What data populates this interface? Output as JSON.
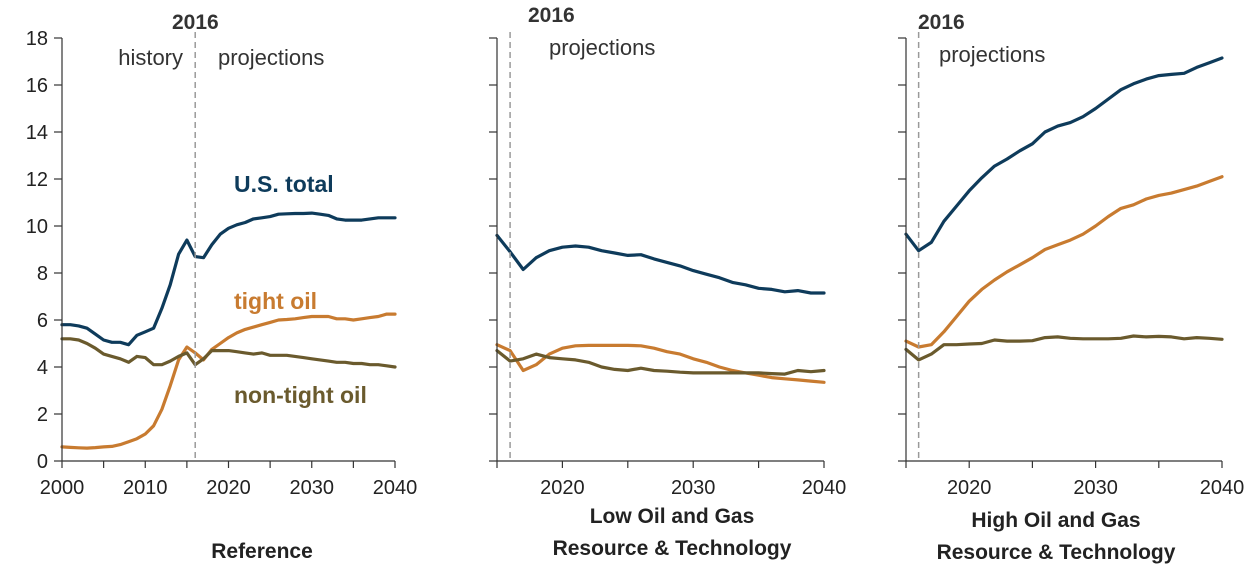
{
  "chart_data": [
    {
      "type": "line",
      "title": "Reference",
      "xlim": [
        2000,
        2040
      ],
      "ylim": [
        0,
        18
      ],
      "x_ticks": [
        2000,
        2010,
        2020,
        2030,
        2040
      ],
      "y_ticks": [
        0,
        2,
        4,
        6,
        8,
        10,
        12,
        14,
        16,
        18
      ],
      "grid": false,
      "divider": {
        "year": "2016",
        "left": "history",
        "right": "projections"
      },
      "series": [
        {
          "name": "U.S. total",
          "color": "#0e3b5b",
          "x": [
            2000,
            2001,
            2002,
            2003,
            2004,
            2005,
            2006,
            2007,
            2008,
            2009,
            2010,
            2011,
            2012,
            2013,
            2014,
            2015,
            2016,
            2017,
            2018,
            2019,
            2020,
            2021,
            2022,
            2023,
            2024,
            2025,
            2026,
            2027,
            2028,
            2029,
            2030,
            2031,
            2032,
            2033,
            2034,
            2035,
            2036,
            2037,
            2038,
            2039,
            2040
          ],
          "y": [
            5.8,
            5.8,
            5.75,
            5.65,
            5.4,
            5.15,
            5.05,
            5.05,
            4.95,
            5.35,
            5.5,
            5.65,
            6.5,
            7.5,
            8.8,
            9.4,
            8.7,
            8.65,
            9.2,
            9.65,
            9.9,
            10.05,
            10.15,
            10.3,
            10.35,
            10.4,
            10.5,
            10.52,
            10.53,
            10.53,
            10.55,
            10.5,
            10.45,
            10.3,
            10.25,
            10.25,
            10.25,
            10.3,
            10.35,
            10.35,
            10.35
          ]
        },
        {
          "name": "tight oil",
          "color": "#c87b30",
          "x": [
            2000,
            2001,
            2002,
            2003,
            2004,
            2005,
            2006,
            2007,
            2008,
            2009,
            2010,
            2011,
            2012,
            2013,
            2014,
            2015,
            2016,
            2017,
            2018,
            2019,
            2020,
            2021,
            2022,
            2023,
            2024,
            2025,
            2026,
            2027,
            2028,
            2029,
            2030,
            2031,
            2032,
            2033,
            2034,
            2035,
            2036,
            2037,
            2038,
            2039,
            2040
          ],
          "y": [
            0.6,
            0.58,
            0.56,
            0.55,
            0.57,
            0.6,
            0.62,
            0.7,
            0.82,
            0.95,
            1.15,
            1.5,
            2.2,
            3.2,
            4.3,
            4.85,
            4.6,
            4.3,
            4.75,
            5.0,
            5.25,
            5.45,
            5.6,
            5.7,
            5.8,
            5.9,
            6.0,
            6.02,
            6.05,
            6.1,
            6.15,
            6.15,
            6.15,
            6.05,
            6.05,
            6.0,
            6.05,
            6.1,
            6.15,
            6.25,
            6.25
          ]
        },
        {
          "name": "non-tight oil",
          "color": "#6a5a2d",
          "x": [
            2000,
            2001,
            2002,
            2003,
            2004,
            2005,
            2006,
            2007,
            2008,
            2009,
            2010,
            2011,
            2012,
            2013,
            2014,
            2015,
            2016,
            2017,
            2018,
            2019,
            2020,
            2021,
            2022,
            2023,
            2024,
            2025,
            2026,
            2027,
            2028,
            2029,
            2030,
            2031,
            2032,
            2033,
            2034,
            2035,
            2036,
            2037,
            2038,
            2039,
            2040
          ],
          "y": [
            5.2,
            5.2,
            5.15,
            5.0,
            4.8,
            4.55,
            4.45,
            4.35,
            4.2,
            4.45,
            4.4,
            4.1,
            4.1,
            4.25,
            4.45,
            4.6,
            4.1,
            4.35,
            4.7,
            4.7,
            4.7,
            4.65,
            4.6,
            4.55,
            4.6,
            4.5,
            4.5,
            4.5,
            4.45,
            4.4,
            4.35,
            4.3,
            4.25,
            4.2,
            4.2,
            4.15,
            4.15,
            4.1,
            4.1,
            4.05,
            4.0
          ]
        }
      ]
    },
    {
      "type": "line",
      "title": "Low Oil and Gas\nResource & Technology",
      "xlim": [
        2015,
        2040
      ],
      "ylim": [
        0,
        18
      ],
      "x_ticks": [
        2020,
        2030,
        2040
      ],
      "grid": false,
      "divider": {
        "year": "2016",
        "left": "",
        "right": "projections"
      },
      "series": [
        {
          "color": "#0e3b5b",
          "x": [
            2015,
            2016,
            2017,
            2018,
            2019,
            2020,
            2021,
            2022,
            2023,
            2024,
            2025,
            2026,
            2027,
            2028,
            2029,
            2030,
            2031,
            2032,
            2033,
            2034,
            2035,
            2036,
            2037,
            2038,
            2039,
            2040
          ],
          "y": [
            9.6,
            8.9,
            8.15,
            8.65,
            8.95,
            9.1,
            9.15,
            9.1,
            8.95,
            8.85,
            8.75,
            8.78,
            8.6,
            8.45,
            8.3,
            8.1,
            7.95,
            7.8,
            7.6,
            7.5,
            7.35,
            7.3,
            7.2,
            7.25,
            7.15,
            7.15
          ]
        },
        {
          "color": "#c87b30",
          "x": [
            2015,
            2016,
            2017,
            2018,
            2019,
            2020,
            2021,
            2022,
            2023,
            2024,
            2025,
            2026,
            2027,
            2028,
            2029,
            2030,
            2031,
            2032,
            2033,
            2034,
            2035,
            2036,
            2037,
            2038,
            2039,
            2040
          ],
          "y": [
            4.95,
            4.7,
            3.85,
            4.1,
            4.55,
            4.8,
            4.9,
            4.92,
            4.92,
            4.92,
            4.92,
            4.9,
            4.8,
            4.65,
            4.55,
            4.35,
            4.2,
            4.0,
            3.85,
            3.75,
            3.65,
            3.55,
            3.5,
            3.45,
            3.4,
            3.35
          ]
        },
        {
          "color": "#6a5a2d",
          "x": [
            2015,
            2016,
            2017,
            2018,
            2019,
            2020,
            2021,
            2022,
            2023,
            2024,
            2025,
            2026,
            2027,
            2028,
            2029,
            2030,
            2031,
            2032,
            2033,
            2034,
            2035,
            2036,
            2037,
            2038,
            2039,
            2040
          ],
          "y": [
            4.7,
            4.25,
            4.35,
            4.55,
            4.4,
            4.35,
            4.3,
            4.2,
            4.0,
            3.9,
            3.85,
            3.95,
            3.85,
            3.82,
            3.78,
            3.75,
            3.75,
            3.75,
            3.75,
            3.75,
            3.75,
            3.72,
            3.7,
            3.85,
            3.8,
            3.85
          ]
        }
      ]
    },
    {
      "type": "line",
      "title": "High Oil and Gas\nResource & Technology",
      "xlim": [
        2015,
        2040
      ],
      "ylim": [
        0,
        18
      ],
      "x_ticks": [
        2020,
        2030,
        2040
      ],
      "grid": false,
      "divider": {
        "year": "2016",
        "left": "",
        "right": "projections"
      },
      "series": [
        {
          "color": "#0e3b5b",
          "x": [
            2015,
            2016,
            2017,
            2018,
            2019,
            2020,
            2021,
            2022,
            2023,
            2024,
            2025,
            2026,
            2027,
            2028,
            2029,
            2030,
            2031,
            2032,
            2033,
            2034,
            2035,
            2036,
            2037,
            2038,
            2039,
            2040
          ],
          "y": [
            9.65,
            8.95,
            9.3,
            10.2,
            10.85,
            11.5,
            12.05,
            12.55,
            12.85,
            13.2,
            13.5,
            14.0,
            14.25,
            14.4,
            14.65,
            15.0,
            15.4,
            15.8,
            16.05,
            16.25,
            16.4,
            16.45,
            16.5,
            16.75,
            16.95,
            17.15
          ]
        },
        {
          "color": "#c87b30",
          "x": [
            2015,
            2016,
            2017,
            2018,
            2019,
            2020,
            2021,
            2022,
            2023,
            2024,
            2025,
            2026,
            2027,
            2028,
            2029,
            2030,
            2031,
            2032,
            2033,
            2034,
            2035,
            2036,
            2037,
            2038,
            2039,
            2040
          ],
          "y": [
            5.1,
            4.85,
            4.95,
            5.5,
            6.15,
            6.8,
            7.3,
            7.7,
            8.05,
            8.35,
            8.65,
            9.0,
            9.2,
            9.4,
            9.65,
            10.0,
            10.4,
            10.75,
            10.9,
            11.15,
            11.3,
            11.4,
            11.55,
            11.7,
            11.9,
            12.1
          ]
        },
        {
          "color": "#6a5a2d",
          "x": [
            2015,
            2016,
            2017,
            2018,
            2019,
            2020,
            2021,
            2022,
            2023,
            2024,
            2025,
            2026,
            2027,
            2028,
            2029,
            2030,
            2031,
            2032,
            2033,
            2034,
            2035,
            2036,
            2037,
            2038,
            2039,
            2040
          ],
          "y": [
            4.75,
            4.3,
            4.55,
            4.95,
            4.95,
            4.98,
            5.0,
            5.15,
            5.1,
            5.1,
            5.12,
            5.25,
            5.28,
            5.22,
            5.2,
            5.2,
            5.2,
            5.22,
            5.32,
            5.28,
            5.3,
            5.28,
            5.2,
            5.25,
            5.22,
            5.18
          ]
        }
      ]
    }
  ]
}
